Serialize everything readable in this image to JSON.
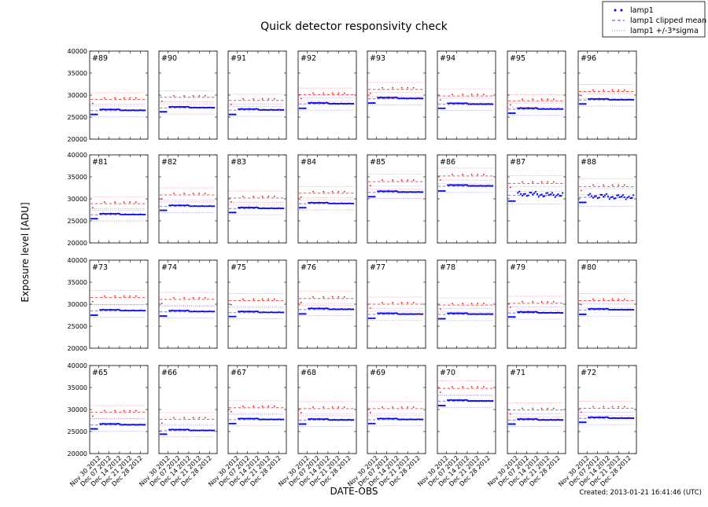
{
  "chart_data": {
    "type": "scatter",
    "title": "Quick detector responsivity check",
    "xlabel": "DATE-OBS",
    "ylabel": "Exposure level [ADU]",
    "footer": "Created: 2013-01-21 16:41:46 (UTC)",
    "ylim": [
      20000,
      40000
    ],
    "yticks": [
      "20000",
      "25000",
      "30000",
      "35000",
      "40000"
    ],
    "xlim": [
      "2012-11-24",
      "2013-01-02"
    ],
    "xticks": [
      {
        "date": "2012-11-30",
        "label": "Nov 30 2012"
      },
      {
        "date": "2012-12-07",
        "label": "Dec 07 2012"
      },
      {
        "date": "2012-12-14",
        "label": "Dec 14 2012"
      },
      {
        "date": "2012-12-21",
        "label": "Dec 21 2012"
      },
      {
        "date": "2012-12-28",
        "label": "Dec 28 2012"
      }
    ],
    "grid": false,
    "legend": {
      "placement": "top-right",
      "entries": [
        {
          "label": "lamp1",
          "style": "points",
          "color": "#0000ff"
        },
        {
          "label": "lamp1 clipped mean",
          "style": "dashed",
          "color": "#0000ff"
        },
        {
          "label": "lamp1 +/-3*sigma",
          "style": "dotted",
          "color": "#0000ff"
        }
      ]
    },
    "colors": {
      "lamp1": "#0000ff",
      "unlabeled_red_series": "#ff0000"
    },
    "lamp1_dates_initial": [
      "2012-11-25",
      "2012-11-26",
      "2012-11-27",
      "2012-11-28",
      "2012-11-29"
    ],
    "lamp1_dates_main_range": [
      "2012-12-01",
      "2012-12-31"
    ],
    "red_point_dates": [
      "2012-11-26",
      "2012-12-04",
      "2012-12-11",
      "2012-12-17",
      "2012-12-21",
      "2012-12-25"
    ],
    "panel_rows": [
      [
        {
          "label": "#89",
          "lamp1_initial": 25600,
          "lamp1_level": 26600,
          "red_mean": 29000,
          "red_3sigma": 1500
        },
        {
          "label": "#90",
          "lamp1_initial": 26200,
          "lamp1_level": 27200,
          "red_mean": 29500,
          "red_3sigma": 1500
        },
        {
          "label": "#91",
          "lamp1_initial": 25600,
          "lamp1_level": 26700,
          "red_mean": 28800,
          "red_3sigma": 1400
        },
        {
          "label": "#92",
          "lamp1_initial": 27000,
          "lamp1_level": 28100,
          "red_mean": 30100,
          "red_3sigma": 1500
        },
        {
          "label": "#93",
          "lamp1_initial": 28200,
          "lamp1_level": 29300,
          "red_mean": 31300,
          "red_3sigma": 1600
        },
        {
          "label": "#94",
          "lamp1_initial": 27000,
          "lamp1_level": 28000,
          "red_mean": 29800,
          "red_3sigma": 1600
        },
        {
          "label": "#95",
          "lamp1_initial": 25900,
          "lamp1_level": 26900,
          "red_mean": 28700,
          "red_3sigma": 1400
        },
        {
          "label": "#96",
          "lamp1_initial": 28000,
          "lamp1_level": 29000,
          "red_mean": 30800,
          "red_3sigma": 1600
        }
      ],
      [
        {
          "label": "#81",
          "lamp1_initial": 25500,
          "lamp1_level": 26500,
          "red_mean": 28900,
          "red_3sigma": 1500
        },
        {
          "label": "#82",
          "lamp1_initial": 27400,
          "lamp1_level": 28400,
          "red_mean": 30900,
          "red_3sigma": 1600
        },
        {
          "label": "#83",
          "lamp1_initial": 26900,
          "lamp1_level": 27900,
          "red_mean": 30200,
          "red_3sigma": 1600
        },
        {
          "label": "#84",
          "lamp1_initial": 28000,
          "lamp1_level": 29000,
          "red_mean": 31300,
          "red_3sigma": 1500
        },
        {
          "label": "#85",
          "lamp1_initial": 30500,
          "lamp1_level": 31600,
          "red_mean": 33900,
          "red_3sigma": 1700
        },
        {
          "label": "#86",
          "lamp1_initial": 31800,
          "lamp1_level": 33000,
          "red_mean": 35200,
          "red_3sigma": 1800
        },
        {
          "label": "#87",
          "lamp1_initial": 29500,
          "lamp1_level": 31000,
          "red_mean": 33500,
          "red_3sigma": 1800,
          "noisy": true
        },
        {
          "label": "#88",
          "lamp1_initial": 29200,
          "lamp1_level": 30500,
          "red_mean": 32800,
          "red_3sigma": 1800,
          "noisy": true
        }
      ],
      [
        {
          "label": "#73",
          "lamp1_initial": 27500,
          "lamp1_level": 28600,
          "red_mean": 31500,
          "red_3sigma": 1600
        },
        {
          "label": "#74",
          "lamp1_initial": 27300,
          "lamp1_level": 28400,
          "red_mean": 31100,
          "red_3sigma": 1600
        },
        {
          "label": "#75",
          "lamp1_initial": 27200,
          "lamp1_level": 28200,
          "red_mean": 30800,
          "red_3sigma": 1600
        },
        {
          "label": "#76",
          "lamp1_initial": 27800,
          "lamp1_level": 28900,
          "red_mean": 31300,
          "red_3sigma": 1600
        },
        {
          "label": "#77",
          "lamp1_initial": 26800,
          "lamp1_level": 27800,
          "red_mean": 30000,
          "red_3sigma": 1600
        },
        {
          "label": "#78",
          "lamp1_initial": 26700,
          "lamp1_level": 27800,
          "red_mean": 29800,
          "red_3sigma": 1600
        },
        {
          "label": "#79",
          "lamp1_initial": 27100,
          "lamp1_level": 28100,
          "red_mean": 30200,
          "red_3sigma": 1600
        },
        {
          "label": "#80",
          "lamp1_initial": 27700,
          "lamp1_level": 28800,
          "red_mean": 30800,
          "red_3sigma": 1600
        }
      ],
      [
        {
          "label": "#65",
          "lamp1_initial": 25600,
          "lamp1_level": 26600,
          "red_mean": 29400,
          "red_3sigma": 1500
        },
        {
          "label": "#66",
          "lamp1_initial": 24400,
          "lamp1_level": 25300,
          "red_mean": 27800,
          "red_3sigma": 1500
        },
        {
          "label": "#67",
          "lamp1_initial": 26800,
          "lamp1_level": 27800,
          "red_mean": 30400,
          "red_3sigma": 1600
        },
        {
          "label": "#68",
          "lamp1_initial": 26700,
          "lamp1_level": 27700,
          "red_mean": 30200,
          "red_3sigma": 1600
        },
        {
          "label": "#69",
          "lamp1_initial": 26800,
          "lamp1_level": 27800,
          "red_mean": 30200,
          "red_3sigma": 1600
        },
        {
          "label": "#70",
          "lamp1_initial": 30900,
          "lamp1_level": 32000,
          "red_mean": 34800,
          "red_3sigma": 1700
        },
        {
          "label": "#71",
          "lamp1_initial": 26700,
          "lamp1_level": 27700,
          "red_mean": 29900,
          "red_3sigma": 1600
        },
        {
          "label": "#72",
          "lamp1_initial": 27100,
          "lamp1_level": 28100,
          "red_mean": 30300,
          "red_3sigma": 1600
        }
      ]
    ]
  }
}
